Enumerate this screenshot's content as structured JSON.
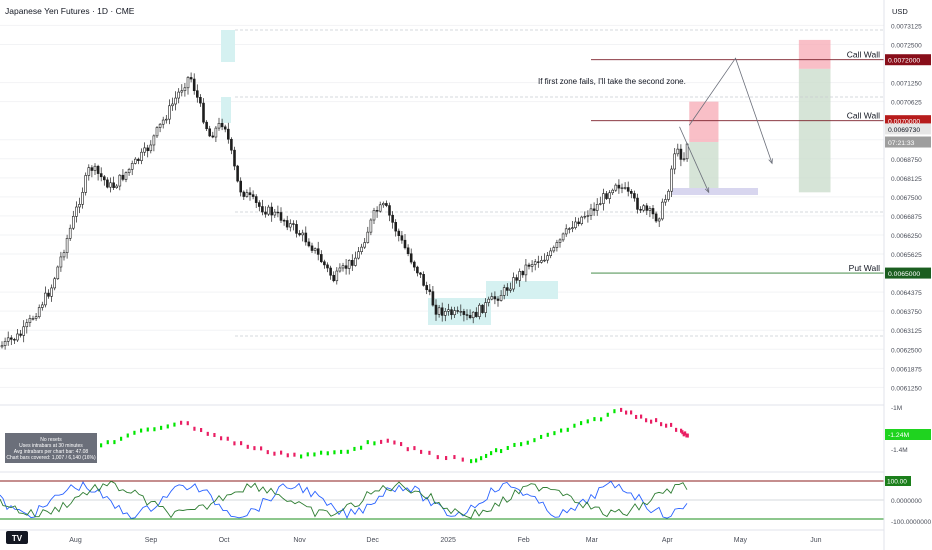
{
  "header": {
    "title": "Japanese Yen Futures · 1D · CME",
    "currency": "USD"
  },
  "annotation_text": "If first zone fails, I'll take the second zone.",
  "watermark": "TV",
  "info_box": [
    "No resets",
    "Uses intrabars at 30 minutes",
    "Avg intrabars per chart bar: 47.08",
    "Chart bars covered: 1,007 / 6,140 (16%)"
  ],
  "price_scale": {
    "ticks": [
      "0.0073125",
      "0.0072500",
      "0.0071250",
      "0.0070625",
      "0.0069375",
      "0.0068750",
      "0.0068125",
      "0.0067500",
      "0.0066875",
      "0.0066250",
      "0.0065625",
      "0.0064375",
      "0.0063750",
      "0.0063125",
      "0.0062500",
      "0.0061875",
      "0.0061250"
    ],
    "tags": [
      {
        "label": "0.0072000",
        "color": "#880e1a",
        "value": 0.0072
      },
      {
        "label": "0.0070000",
        "color": "#b71c1c",
        "value": 0.007
      },
      {
        "label": "0.0069730",
        "color": "#e6e6e6",
        "value": 0.006973
      },
      {
        "label": "07:21:33",
        "color": "#9e9e9e",
        "value": 0.00693
      },
      {
        "label": "0.0065000",
        "color": "#1b5e20",
        "value": 0.0065
      }
    ]
  },
  "levels": [
    {
      "label": "Call Wall",
      "value": 0.0072,
      "color": "#7b1e28"
    },
    {
      "label": "Call Wall",
      "value": 0.007,
      "color": "#7b1e28"
    },
    {
      "label": "Put Wall",
      "value": 0.0065,
      "color": "#2e7d32"
    }
  ],
  "indicator1_scale": [
    "-1M",
    "-1.4M"
  ],
  "indicator1_tag": "-1.24M",
  "indicator2_scale": [
    "100.00",
    "0.0000000",
    "-100.0000000"
  ],
  "indicator2_tag": "100.00",
  "time_axis": [
    "Aug",
    "Sep",
    "Oct",
    "Nov",
    "Dec",
    "2025",
    "Feb",
    "Mar",
    "Apr",
    "May",
    "Jun"
  ],
  "chart_data": {
    "type": "candlestick",
    "title": "Japanese Yen Futures · 1D · CME",
    "ylabel": "USD",
    "ylim": [
      0.0061,
      0.00735
    ],
    "x_range": [
      "2024-07-01",
      "2025-06-15"
    ],
    "trend_points": [
      [
        "2024-07-01",
        0.006258
      ],
      [
        "2024-07-10",
        0.0063
      ],
      [
        "2024-07-22",
        0.00645
      ],
      [
        "2024-08-01",
        0.0067
      ],
      [
        "2024-08-07",
        0.00685
      ],
      [
        "2024-08-16",
        0.00678
      ],
      [
        "2024-08-30",
        0.0069
      ],
      [
        "2024-09-06",
        0.007
      ],
      [
        "2024-09-13",
        0.0071
      ],
      [
        "2024-09-17",
        0.00715
      ],
      [
        "2024-09-25",
        0.00695
      ],
      [
        "2024-10-01",
        0.007
      ],
      [
        "2024-10-07",
        0.00678
      ],
      [
        "2024-10-15",
        0.00672
      ],
      [
        "2024-10-25",
        0.00668
      ],
      [
        "2024-11-05",
        0.0066
      ],
      [
        "2024-11-15",
        0.00648
      ],
      [
        "2024-11-25",
        0.00656
      ],
      [
        "2024-12-02",
        0.0067
      ],
      [
        "2024-12-06",
        0.00672
      ],
      [
        "2024-12-13",
        0.0066
      ],
      [
        "2024-12-20",
        0.0065
      ],
      [
        "2024-12-27",
        0.00638
      ],
      [
        "2025-01-10",
        0.00635
      ],
      [
        "2025-01-14",
        0.00638
      ],
      [
        "2025-01-24",
        0.00644
      ],
      [
        "2025-02-03",
        0.00653
      ],
      [
        "2025-02-12",
        0.00656
      ],
      [
        "2025-02-21",
        0.00666
      ],
      [
        "2025-03-03",
        0.00672
      ],
      [
        "2025-03-11",
        0.0068
      ],
      [
        "2025-03-20",
        0.00672
      ],
      [
        "2025-03-28",
        0.00668
      ],
      [
        "2025-04-01",
        0.00676
      ],
      [
        "2025-04-04",
        0.0069
      ],
      [
        "2025-04-08",
        0.00688
      ],
      [
        "2025-04-10",
        0.006973
      ]
    ],
    "zones": [
      {
        "label": "first zone",
        "entry": 0.00693,
        "stop": 0.0070625,
        "target": 0.00676,
        "x": [
          "2025-04-10",
          "2025-04-22"
        ]
      },
      {
        "label": "second zone",
        "entry": 0.00717,
        "stop": 0.007265,
        "target": 0.006765,
        "x": [
          "2025-05-25",
          "2025-06-07"
        ]
      }
    ],
    "projection_paths": [
      [
        [
          "2025-04-06",
          0.00698
        ],
        [
          "2025-04-18",
          0.006765
        ]
      ],
      [
        [
          "2025-04-10",
          0.006985
        ],
        [
          "2025-04-29",
          0.007205
        ],
        [
          "2025-05-14",
          0.00686
        ]
      ]
    ],
    "indicator1": {
      "scale": [
        "-1M",
        "-1.4M"
      ],
      "last": "-1.24M"
    },
    "indicator2": {
      "scale": [
        100,
        0,
        -100
      ],
      "last": 100
    }
  }
}
